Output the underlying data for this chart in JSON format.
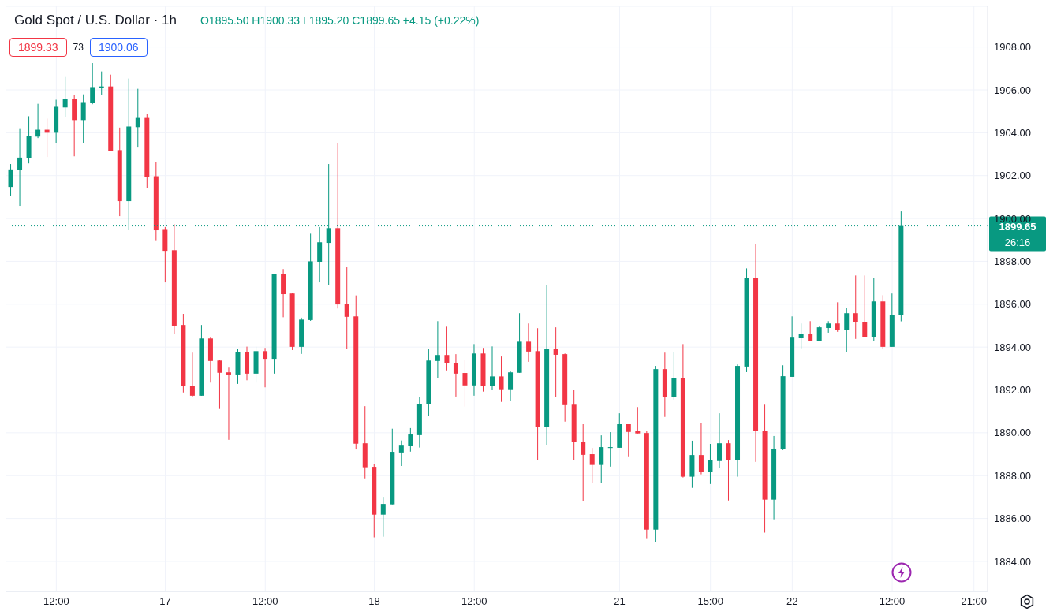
{
  "chart_data": {
    "type": "candlestick",
    "title": "Gold Spot / U.S. Dollar · 1h",
    "annotations": [
      "O1895.50 H1900.33 L1895.20 C1899.65 +4.15 (+0.22%)",
      "1899.33",
      "73",
      "1900.06",
      "26:16"
    ],
    "categories": [
      null,
      null,
      null,
      null,
      null,
      "12:00",
      null,
      null,
      null,
      null,
      null,
      null,
      null,
      null,
      null,
      null,
      null,
      "17",
      null,
      null,
      null,
      null,
      null,
      null,
      null,
      null,
      null,
      null,
      "12:00",
      null,
      null,
      null,
      null,
      null,
      null,
      null,
      null,
      null,
      null,
      null,
      "18",
      null,
      null,
      null,
      null,
      null,
      null,
      null,
      null,
      null,
      null,
      "12:00",
      null,
      null,
      null,
      null,
      null,
      null,
      null,
      null,
      null,
      null,
      null,
      null,
      null,
      null,
      null,
      "21",
      null,
      null,
      null,
      null,
      null,
      null,
      null,
      null,
      null,
      "15:00",
      null,
      null,
      null,
      null,
      null,
      null,
      null,
      null,
      "22",
      null,
      null,
      null,
      null,
      null,
      null,
      null,
      null,
      null,
      null,
      "12:00",
      null,
      null,
      null,
      null,
      null,
      null,
      null,
      null,
      "21:00",
      null
    ],
    "colors": [
      "#089981",
      "#089981",
      "#089981",
      "#089981",
      "#f23645",
      "#089981",
      "#089981",
      "#f23645",
      "#089981",
      "#089981",
      "#089981",
      "#f23645",
      "#f23645",
      "#089981",
      "#089981",
      "#f23645",
      "#f23645",
      "#f23645",
      "#f23645",
      "#f23645",
      "#f23645",
      "#089981",
      "#f23645",
      "#f23645",
      "#f23645",
      "#089981",
      "#f23645",
      "#089981",
      "#f23645",
      "#089981",
      "#f23645",
      "#f23645",
      "#089981",
      "#089981",
      "#089981",
      "#089981",
      "#f23645",
      "#f23645",
      "#f23645",
      "#f23645",
      "#f23645",
      "#089981",
      "#089981",
      "#089981",
      "#089981",
      "#089981",
      "#089981",
      "#089981",
      "#f23645",
      "#f23645",
      "#f23645",
      "#089981",
      "#f23645",
      "#089981",
      "#f23645",
      "#089981",
      "#089981",
      "#f23645",
      "#f23645",
      "#089981",
      "#f23645",
      "#f23645",
      "#f23645",
      "#f23645",
      "#f23645",
      "#089981",
      "#089981",
      "#089981",
      "#f23645",
      "#f23645",
      "#f23645",
      "#089981",
      "#f23645",
      "#089981",
      "#f23645",
      "#089981",
      "#f23645",
      "#089981",
      "#089981",
      "#f23645",
      "#089981",
      "#089981",
      "#f23645",
      "#f23645",
      "#089981",
      "#089981",
      "#089981",
      "#089981",
      "#f23645",
      "#089981",
      "#089981",
      "#f23645",
      "#089981",
      "#f23645",
      "#f23645",
      "#089981",
      "#f23645",
      "#089981",
      "#089981",
      null,
      null,
      null,
      null,
      null,
      null,
      null,
      null,
      null
    ],
    "ohlc": [
      [
        1901.47,
        1902.54,
        1901.07,
        1902.29
      ],
      [
        1902.28,
        1904.21,
        1900.59,
        1902.84
      ],
      [
        1902.83,
        1904.77,
        1902.57,
        1903.85
      ],
      [
        1903.82,
        1905.35,
        1903.75,
        1904.14
      ],
      [
        1904.14,
        1904.66,
        1902.87,
        1904.0
      ],
      [
        1904.0,
        1905.54,
        1903.52,
        1905.21
      ],
      [
        1905.18,
        1906.6,
        1904.74,
        1905.57
      ],
      [
        1905.57,
        1905.76,
        1902.9,
        1904.59
      ],
      [
        1904.59,
        1905.79,
        1903.52,
        1905.43
      ],
      [
        1905.4,
        1907.25,
        1905.33,
        1906.13
      ],
      [
        1906.1,
        1906.86,
        1905.78,
        1906.16
      ],
      [
        1906.16,
        1906.71,
        1903.15,
        1903.16
      ],
      [
        1903.19,
        1904.24,
        1900.11,
        1900.81
      ],
      [
        1900.81,
        1906.53,
        1899.45,
        1904.29
      ],
      [
        1904.26,
        1906.05,
        1903.31,
        1904.69
      ],
      [
        1904.69,
        1904.88,
        1901.43,
        1901.95
      ],
      [
        1901.97,
        1902.63,
        1898.95,
        1899.45
      ],
      [
        1899.47,
        1899.6,
        1897.02,
        1898.49
      ],
      [
        1898.52,
        1899.73,
        1894.63,
        1895.0
      ],
      [
        1895.03,
        1895.55,
        1891.88,
        1892.17
      ],
      [
        1892.19,
        1893.74,
        1891.66,
        1891.73
      ],
      [
        1891.73,
        1895.03,
        1891.73,
        1894.4
      ],
      [
        1894.4,
        1894.45,
        1892.34,
        1893.35
      ],
      [
        1893.37,
        1893.41,
        1891.11,
        1892.8
      ],
      [
        1892.82,
        1893.04,
        1889.67,
        1892.72
      ],
      [
        1892.72,
        1893.9,
        1892.28,
        1893.78
      ],
      [
        1893.78,
        1894.02,
        1892.45,
        1892.76
      ],
      [
        1892.76,
        1894.02,
        1892.34,
        1893.81
      ],
      [
        1893.81,
        1893.96,
        1892.12,
        1893.45
      ],
      [
        1893.45,
        1897.42,
        1892.76,
        1897.42
      ],
      [
        1897.42,
        1897.64,
        1895.39,
        1896.47
      ],
      [
        1896.5,
        1896.53,
        1893.86,
        1894.01
      ],
      [
        1894.01,
        1895.37,
        1893.68,
        1895.28
      ],
      [
        1895.26,
        1899.29,
        1895.22,
        1898.0
      ],
      [
        1897.98,
        1899.6,
        1897.02,
        1898.89
      ],
      [
        1898.86,
        1902.54,
        1896.88,
        1899.55
      ],
      [
        1899.55,
        1903.52,
        1895.8,
        1895.99
      ],
      [
        1896.02,
        1897.72,
        1893.9,
        1895.41
      ],
      [
        1895.43,
        1896.41,
        1889.22,
        1889.49
      ],
      [
        1889.51,
        1891.24,
        1887.87,
        1888.39
      ],
      [
        1888.41,
        1888.53,
        1885.12,
        1886.18
      ],
      [
        1886.18,
        1887.01,
        1885.15,
        1886.68
      ],
      [
        1886.66,
        1890.19,
        1886.66,
        1889.11
      ],
      [
        1889.08,
        1889.64,
        1888.45,
        1889.4
      ],
      [
        1889.37,
        1890.22,
        1889.12,
        1889.92
      ],
      [
        1889.89,
        1891.68,
        1889.31,
        1891.35
      ],
      [
        1891.33,
        1893.92,
        1890.78,
        1893.37
      ],
      [
        1893.35,
        1895.21,
        1892.54,
        1893.63
      ],
      [
        1893.63,
        1894.95,
        1892.91,
        1893.24
      ],
      [
        1893.26,
        1893.67,
        1891.69,
        1892.76
      ],
      [
        1892.79,
        1893.41,
        1891.22,
        1892.21
      ],
      [
        1892.21,
        1894.14,
        1891.73,
        1893.7
      ],
      [
        1893.7,
        1893.96,
        1891.92,
        1892.17
      ],
      [
        1892.17,
        1894.03,
        1891.99,
        1892.63
      ],
      [
        1892.63,
        1893.56,
        1891.44,
        1892.03
      ],
      [
        1892.03,
        1892.9,
        1891.47,
        1892.82
      ],
      [
        1892.8,
        1895.58,
        1892.8,
        1894.25
      ],
      [
        1894.25,
        1895.1,
        1893.31,
        1893.79
      ],
      [
        1893.81,
        1894.88,
        1888.72,
        1890.26
      ],
      [
        1890.26,
        1896.9,
        1889.41,
        1893.92
      ],
      [
        1893.92,
        1894.92,
        1891.66,
        1893.64
      ],
      [
        1893.67,
        1893.7,
        1890.52,
        1891.29
      ],
      [
        1891.31,
        1892.01,
        1888.72,
        1889.56
      ],
      [
        1889.59,
        1890.4,
        1886.81,
        1888.97
      ],
      [
        1889.0,
        1889.29,
        1887.65,
        1888.5
      ],
      [
        1888.5,
        1889.88,
        1887.65,
        1889.33
      ],
      [
        1889.29,
        1890.03,
        1888.42,
        1889.33
      ],
      [
        1889.3,
        1890.91,
        1889.3,
        1890.4
      ],
      [
        1890.4,
        1890.4,
        1888.9,
        1890.04
      ],
      [
        1890.07,
        1891.2,
        1889.97,
        1889.97
      ],
      [
        1889.99,
        1890.1,
        1885.08,
        1885.48
      ],
      [
        1885.48,
        1893.12,
        1884.9,
        1892.97
      ],
      [
        1892.97,
        1893.74,
        1890.74,
        1891.66
      ],
      [
        1891.66,
        1893.78,
        1891.55,
        1892.56
      ],
      [
        1892.56,
        1894.14,
        1887.91,
        1887.95
      ],
      [
        1887.95,
        1889.63,
        1887.43,
        1888.96
      ],
      [
        1888.96,
        1890.47,
        1888.06,
        1888.17
      ],
      [
        1888.17,
        1889.48,
        1887.61,
        1888.71
      ],
      [
        1888.68,
        1890.91,
        1888.35,
        1889.51
      ],
      [
        1889.51,
        1889.66,
        1886.84,
        1888.72
      ],
      [
        1888.72,
        1893.19,
        1887.95,
        1893.12
      ],
      [
        1893.09,
        1897.67,
        1892.83,
        1897.23
      ],
      [
        1897.23,
        1898.81,
        1888.64,
        1890.08
      ],
      [
        1890.1,
        1891.31,
        1885.34,
        1886.88
      ],
      [
        1886.88,
        1889.85,
        1885.96,
        1889.26
      ],
      [
        1889.23,
        1893.15,
        1889.19,
        1892.64
      ],
      [
        1892.61,
        1895.43,
        1892.61,
        1894.44
      ],
      [
        1894.41,
        1895.1,
        1893.94,
        1894.62
      ],
      [
        1894.62,
        1895.21,
        1894.27,
        1894.3
      ],
      [
        1894.3,
        1894.95,
        1894.3,
        1894.92
      ],
      [
        1894.89,
        1895.21,
        1894.67,
        1895.1
      ],
      [
        1895.1,
        1896.09,
        1894.71,
        1894.78
      ],
      [
        1894.78,
        1895.84,
        1893.75,
        1895.58
      ],
      [
        1895.58,
        1897.34,
        1894.38,
        1895.15
      ],
      [
        1895.17,
        1897.34,
        1894.45,
        1894.45
      ],
      [
        1894.45,
        1897.23,
        1894.27,
        1896.13
      ],
      [
        1896.13,
        1896.42,
        1893.9,
        1894.01
      ],
      [
        1894.01,
        1896.5,
        1894.01,
        1895.5
      ],
      [
        1895.5,
        1900.33,
        1895.2,
        1899.65
      ],
      null,
      null,
      null,
      null,
      null,
      null,
      null,
      null,
      null
    ],
    "ylim": [
      1882.6,
      1909.9
    ],
    "yticks": [
      {
        "value": 1884,
        "label": "1884.00"
      },
      {
        "value": 1886,
        "label": "1886.00"
      },
      {
        "value": 1888,
        "label": "1888.00"
      },
      {
        "value": 1890,
        "label": "1890.00"
      },
      {
        "value": 1892,
        "label": "1892.00"
      },
      {
        "value": 1894,
        "label": "1894.00"
      },
      {
        "value": 1896,
        "label": "1896.00"
      },
      {
        "value": 1898,
        "label": "1898.00"
      },
      {
        "value": 1900,
        "label": "1900.00"
      },
      {
        "value": 1902,
        "label": "1902.00"
      },
      {
        "value": 1904,
        "label": "1904.00"
      },
      {
        "value": 1906,
        "label": "1906.00"
      },
      {
        "value": 1908,
        "label": "1908.00"
      }
    ],
    "ref_lines": [
      {
        "axis": "y",
        "value": 1899.65,
        "label": "1899.65",
        "color": "#089981",
        "line_style": "dotted"
      }
    ],
    "grid": true
  }
}
